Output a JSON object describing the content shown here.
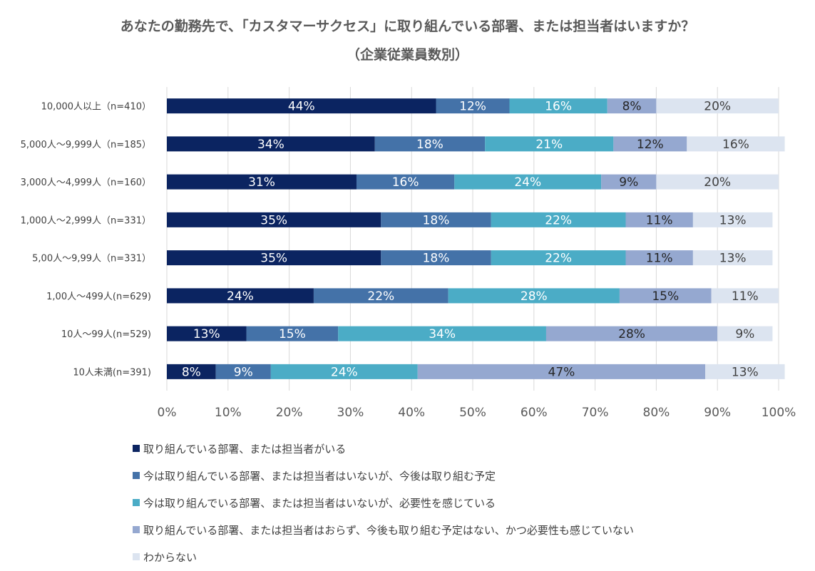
{
  "title": "あなたの勤務先で、「カスタマーサクセス」に取り組んでいる部署、または担当者はいますか？",
  "subtitle": "（企業従業員数別）",
  "chart_data": {
    "type": "bar",
    "orientation": "horizontal",
    "stacked": true,
    "percent": true,
    "categories": [
      "10,000人以上（n=410）",
      "5,000人～9,999人（n=185）",
      "3,000人～4,999人（n=160）",
      "1,000人～2,999人（n=331）",
      "5,00人～9,99人（n=331）",
      "1,00人～499人(n=629)",
      "10人～99人(n=529)",
      "10人未満(n=391)"
    ],
    "series": [
      {
        "name": "取り組んでいる部署、または担当者がいる",
        "color": "#0b2461",
        "label_color": "#ffffff",
        "values": [
          44,
          34,
          31,
          35,
          35,
          24,
          13,
          8
        ]
      },
      {
        "name": "今は取り組んでいる部署、または担当者はいないが、今後は取り組む予定",
        "color": "#4472a8",
        "label_color": "#ffffff",
        "values": [
          12,
          18,
          16,
          18,
          18,
          22,
          15,
          9
        ]
      },
      {
        "name": "今は取り組んでいる部署、または担当者はいないが、必要性を感じている",
        "color": "#4bacc6",
        "label_color": "#ffffff",
        "values": [
          16,
          21,
          24,
          22,
          22,
          28,
          34,
          24
        ]
      },
      {
        "name": "取り組んでいる部署、または担当者はおらず、今後も取り組む予定はない、かつ必要性も感じていない",
        "color": "#95a8d0",
        "label_color": "#262626",
        "values": [
          8,
          12,
          9,
          11,
          11,
          15,
          28,
          47
        ]
      },
      {
        "name": "わからない",
        "color": "#dce4f0",
        "label_color": "#404040",
        "values": [
          20,
          16,
          20,
          13,
          13,
          11,
          9,
          13
        ]
      }
    ],
    "xlim": [
      0,
      100
    ],
    "xticks": [
      "0%",
      "10%",
      "20%",
      "30%",
      "40%",
      "50%",
      "60%",
      "70%",
      "80%",
      "90%",
      "100%"
    ],
    "grid": true,
    "legend_position": "bottom"
  }
}
